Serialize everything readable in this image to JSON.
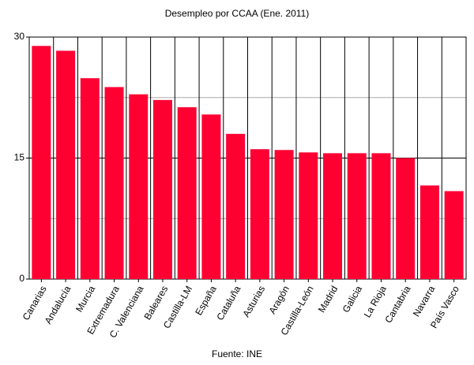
{
  "chart_data": {
    "type": "bar",
    "title": "Desempleo por CCAA (Ene. 2011)",
    "source": "Fuente: INE",
    "categories": [
      "Canarias",
      "Andalucía",
      "Murcia",
      "Extremadura",
      "C. Valenciana",
      "Baleares",
      "Castilla-LM",
      "España",
      "Cataluña",
      "Asturias",
      "Aragón",
      "Castilla-León",
      "Madrid",
      "Galicia",
      "La Rioja",
      "Cantabria",
      "Navarra",
      "País Vasco"
    ],
    "values": [
      28.9,
      28.3,
      24.9,
      23.8,
      22.9,
      22.2,
      21.3,
      20.4,
      18.0,
      16.1,
      16.0,
      15.7,
      15.6,
      15.6,
      15.6,
      15.0,
      11.6,
      10.9
    ],
    "color": "#ff0033",
    "ylim": [
      0,
      30
    ],
    "yticks": [
      0,
      15,
      30
    ],
    "minor_yticks": [
      7.5,
      22.5
    ],
    "grid": true
  }
}
